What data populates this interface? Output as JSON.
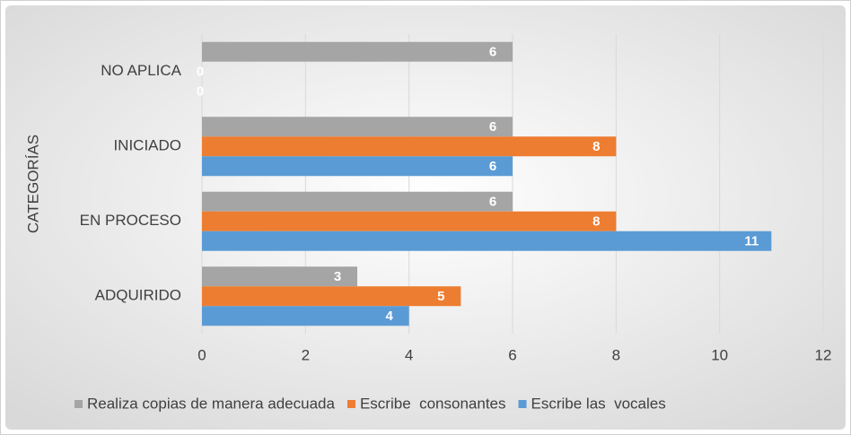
{
  "chart_data": {
    "type": "bar",
    "orientation": "horizontal",
    "y_label": "CATEGORÍAS",
    "categories": [
      "ADQUIRIDO",
      "EN PROCESO",
      "INICIADO",
      "NO APLICA"
    ],
    "series": [
      {
        "name": "Realiza copias de manera adecuada",
        "color": "#a5a5a5",
        "values": [
          3,
          6,
          6,
          6
        ]
      },
      {
        "name": "Escribe  consonantes",
        "color": "#ed7d31",
        "values": [
          5,
          8,
          8,
          0
        ]
      },
      {
        "name": "Escribe las  vocales",
        "color": "#5b9bd5",
        "values": [
          4,
          11,
          6,
          0
        ]
      }
    ],
    "xlim": [
      0,
      12
    ],
    "xticks": [
      0,
      2,
      4,
      6,
      8,
      10,
      12
    ],
    "grid": true,
    "legend": "bottom"
  }
}
